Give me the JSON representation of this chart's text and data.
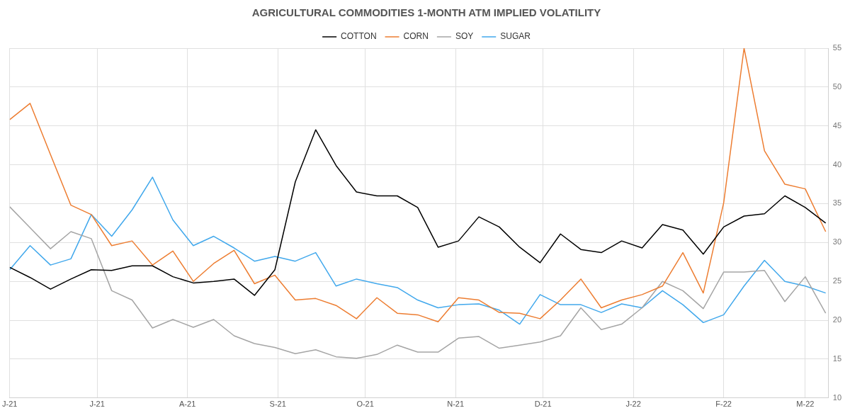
{
  "chart_data": {
    "type": "line",
    "title": "AGRICULTURAL COMMODITIES 1-MONTH ATM IMPLIED VOLATILITY",
    "x": [
      "2021-06-01",
      "2021-06-08",
      "2021-06-15",
      "2021-06-22",
      "2021-06-29",
      "2021-07-06",
      "2021-07-13",
      "2021-07-20",
      "2021-07-27",
      "2021-08-03",
      "2021-08-10",
      "2021-08-17",
      "2021-08-24",
      "2021-08-31",
      "2021-09-07",
      "2021-09-14",
      "2021-09-21",
      "2021-09-28",
      "2021-10-05",
      "2021-10-12",
      "2021-10-19",
      "2021-10-26",
      "2021-11-02",
      "2021-11-09",
      "2021-11-16",
      "2021-11-23",
      "2021-11-30",
      "2021-12-07",
      "2021-12-14",
      "2021-12-21",
      "2021-12-28",
      "2022-01-04",
      "2022-01-11",
      "2022-01-18",
      "2022-01-25",
      "2022-02-01",
      "2022-02-08",
      "2022-02-15",
      "2022-02-22",
      "2022-03-01",
      "2022-03-08"
    ],
    "series": [
      {
        "name": "COTTON",
        "color": "#000000",
        "values": [
          26.8,
          25.5,
          24,
          25.3,
          26.5,
          26.4,
          27,
          27,
          25.6,
          24.8,
          25,
          25.3,
          23.2,
          26.5,
          37.8,
          44.5,
          39.9,
          36.5,
          36,
          36,
          34.5,
          29.4,
          30.2,
          33.3,
          32,
          29.4,
          27.4,
          31.1,
          29.1,
          28.7,
          30.2,
          29.3,
          32.3,
          31.6,
          28.5,
          32,
          33.4,
          33.7,
          36,
          34.5,
          32.5
        ]
      },
      {
        "name": "CORN",
        "color": "#ed7d31",
        "values": [
          45.8,
          47.9,
          41.3,
          34.8,
          33.6,
          29.6,
          30.2,
          27.1,
          28.9,
          25,
          27.3,
          29,
          24.7,
          25.8,
          22.6,
          22.8,
          21.9,
          20.2,
          22.9,
          20.9,
          20.7,
          19.8,
          22.9,
          22.6,
          21,
          20.9,
          20.2,
          22.6,
          25.3,
          21.6,
          22.6,
          23.3,
          24.4,
          28.7,
          23.5,
          35.1,
          55,
          41.8,
          37.5,
          36.9,
          31.4
        ]
      },
      {
        "name": "SOY",
        "color": "#a5a5a5",
        "values": [
          34.6,
          31.9,
          29.2,
          31.4,
          30.5,
          23.8,
          22.6,
          19,
          20.1,
          19.1,
          20.1,
          18,
          17,
          16.5,
          15.7,
          16.2,
          15.3,
          15.1,
          15.6,
          16.8,
          15.9,
          15.9,
          17.7,
          17.9,
          16.4,
          16.8,
          17.2,
          18,
          21.6,
          18.8,
          19.5,
          21.6,
          25,
          23.8,
          21.5,
          26.2,
          26.2,
          26.4,
          22.4,
          25.6,
          20.9
        ]
      },
      {
        "name": "SUGAR",
        "color": "#41a8ec",
        "values": [
          26.5,
          29.6,
          27.1,
          27.9,
          33.6,
          30.8,
          34.2,
          38.4,
          32.9,
          29.6,
          30.8,
          29.3,
          27.6,
          28.2,
          27.6,
          28.7,
          24.4,
          25.3,
          24.7,
          24.2,
          22.6,
          21.6,
          22,
          22.1,
          21.3,
          19.5,
          23.3,
          22,
          22,
          21,
          22.1,
          21.6,
          23.8,
          22,
          19.7,
          20.7,
          24.4,
          27.7,
          25,
          24.4,
          23.5
        ]
      }
    ],
    "xlim": [
      "2021-06-01",
      "2022-03-09"
    ],
    "xticks": [
      {
        "value": "2021-06-01",
        "label": "J-21"
      },
      {
        "value": "2021-07-01",
        "label": "J-21"
      },
      {
        "value": "2021-08-01",
        "label": "A-21"
      },
      {
        "value": "2021-09-01",
        "label": "S-21"
      },
      {
        "value": "2021-10-01",
        "label": "O-21"
      },
      {
        "value": "2021-11-01",
        "label": "N-21"
      },
      {
        "value": "2021-12-01",
        "label": "D-21"
      },
      {
        "value": "2022-01-01",
        "label": "J-22"
      },
      {
        "value": "2022-02-01",
        "label": "F-22"
      },
      {
        "value": "2022-03-01",
        "label": "M-22"
      }
    ],
    "ylim": [
      10,
      55
    ],
    "yticks": [
      10,
      15,
      20,
      25,
      30,
      35,
      40,
      45,
      50,
      55
    ],
    "grid": true,
    "legend": "top",
    "marker": "none",
    "line_style": "solid"
  }
}
